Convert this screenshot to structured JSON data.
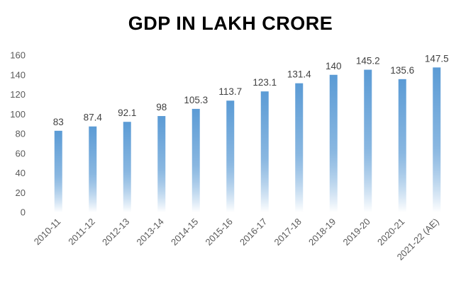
{
  "chart_data": {
    "type": "bar",
    "title": "GDP IN LAKH CRORE",
    "xlabel": "",
    "ylabel": "",
    "categories": [
      "2010-11",
      "2011-12",
      "2012-13",
      "2013-14",
      "2014-15",
      "2015-16",
      "2016-17",
      "2017-18",
      "2018-19",
      "2019-20",
      "2020-21",
      "2021-22 (AE)"
    ],
    "values": [
      83,
      87.4,
      92.1,
      98,
      105.3,
      113.7,
      123.1,
      131.4,
      140,
      145.2,
      135.6,
      147.5
    ],
    "data_labels": [
      "83",
      "87.4",
      "92.1",
      "98",
      "105.3",
      "113.7",
      "123.1",
      "131.4",
      "140",
      "145.2",
      "135.6",
      "147.5"
    ],
    "ylim": [
      0,
      160
    ],
    "yticks": [
      0,
      20,
      40,
      60,
      80,
      100,
      120,
      140,
      160
    ],
    "grid": false,
    "legend": "none",
    "colors": {
      "bar_top": "#5B9BD5",
      "bar_bottom": "#FFFFFF",
      "tick_text": "#595959",
      "label_text": "#404040"
    }
  }
}
